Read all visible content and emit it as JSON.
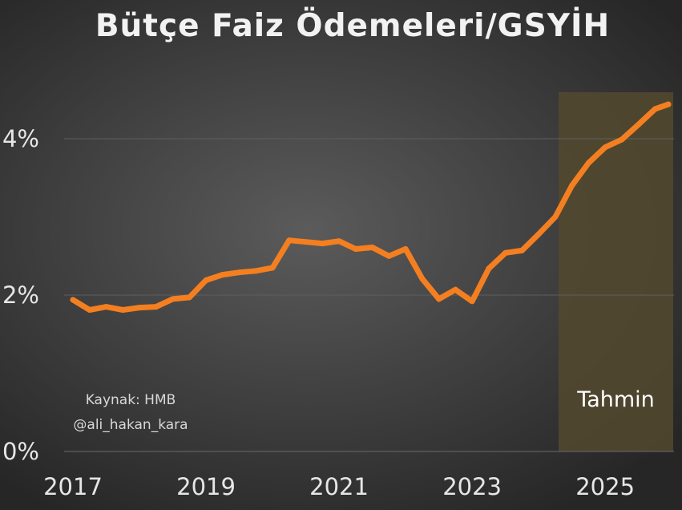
{
  "chart_data": {
    "type": "line",
    "title": "Bütçe Faiz Ödemeleri/GSYİH",
    "xlabel": "",
    "ylabel": "",
    "x_ticks": [
      "2017",
      "2019",
      "2021",
      "2023",
      "2025"
    ],
    "y_ticks": [
      "0%",
      "2%",
      "4%"
    ],
    "xlim": [
      2017.0,
      2025.95
    ],
    "ylim": [
      0,
      4.8
    ],
    "grid": "horizontal",
    "line_color": "#f47f20",
    "series": [
      {
        "x": [
          2017.0,
          2017.25,
          2017.5,
          2017.75,
          2018.0,
          2018.25,
          2018.5,
          2018.75,
          2019.0,
          2019.25,
          2019.5,
          2019.75,
          2020.0,
          2020.25,
          2020.5,
          2020.75,
          2021.0,
          2021.25,
          2021.5,
          2021.75,
          2022.0,
          2022.25,
          2022.5,
          2022.75,
          2023.0,
          2023.25,
          2023.5,
          2023.75,
          2024.0,
          2024.25,
          2024.5,
          2024.75,
          2025.0,
          2025.25,
          2025.5,
          2025.75,
          2025.95
        ],
        "values": [
          1.94,
          1.81,
          1.85,
          1.81,
          1.84,
          1.85,
          1.95,
          1.97,
          2.19,
          2.26,
          2.29,
          2.31,
          2.35,
          2.7,
          2.68,
          2.66,
          2.69,
          2.59,
          2.61,
          2.5,
          2.59,
          2.21,
          1.95,
          2.07,
          1.92,
          2.34,
          2.54,
          2.57,
          2.78,
          3.0,
          3.4,
          3.69,
          3.89,
          3.99,
          4.18,
          4.38,
          4.44
        ]
      }
    ],
    "forecast_region": {
      "x_start": 2024.3,
      "x_end": 2025.95,
      "label": "Tahmin",
      "color": "#54492f"
    },
    "annotations": [
      "Kaynak: HMB",
      "@ali_hakan_kara"
    ]
  }
}
